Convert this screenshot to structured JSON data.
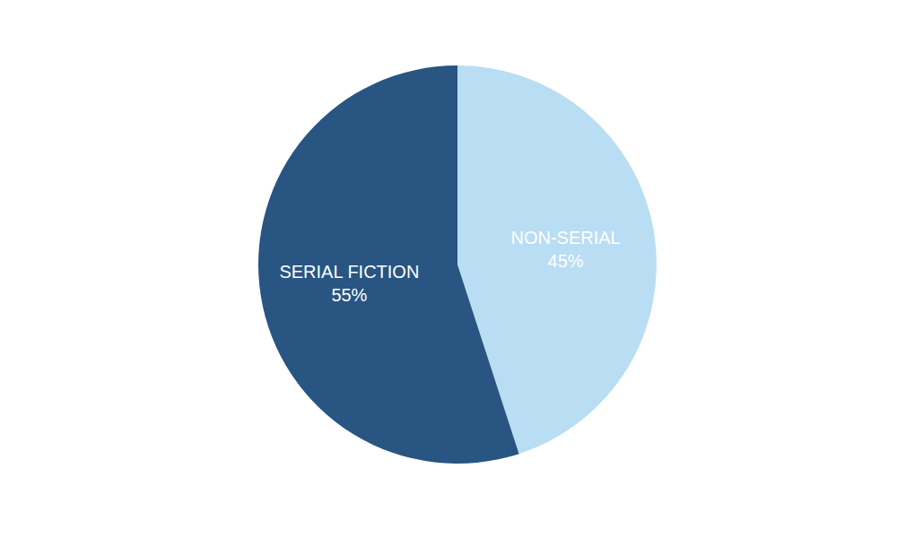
{
  "chart_data": {
    "type": "pie",
    "categories": [
      "NON-SERIAL",
      "SERIAL FICTION"
    ],
    "values": [
      45,
      55
    ],
    "value_labels": [
      "45%",
      "55%"
    ],
    "colors": [
      "#b9ddf3",
      "#285582"
    ],
    "data_labels": true
  }
}
